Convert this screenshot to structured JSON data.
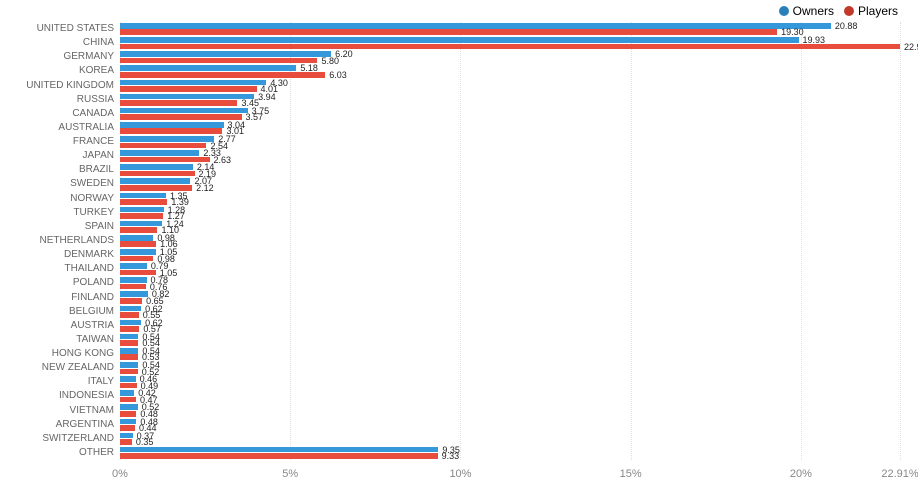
{
  "chart": {
    "type": "bar",
    "orientation": "horizontal",
    "background_color": "#ffffff",
    "grid_color": "rgba(0,0,0,0.12)",
    "axis_label_color": "#888888",
    "category_label_color": "#666666",
    "value_label_color": "#222222",
    "category_label_fontsize": 10,
    "value_label_fontsize": 9,
    "axis_label_fontsize": 11,
    "legend_fontsize": 12,
    "x_ticks": [
      {
        "value": 0,
        "label": "0%"
      },
      {
        "value": 5,
        "label": "5%"
      },
      {
        "value": 10,
        "label": "10%"
      },
      {
        "value": 15,
        "label": "15%"
      },
      {
        "value": 20,
        "label": "20%"
      },
      {
        "value": 22.91,
        "label": "22.91%"
      }
    ],
    "x_max": 22.91,
    "series": [
      {
        "key": "owners",
        "label": "Owners",
        "color": "#3498db",
        "swatch_color": "#2980b9"
      },
      {
        "key": "players",
        "label": "Players",
        "color": "#e74c3c",
        "swatch_color": "#c0392b"
      }
    ],
    "categories": [
      {
        "label": "UNITED STATES",
        "owners": 20.88,
        "players": 19.3
      },
      {
        "label": "CHINA",
        "owners": 19.93,
        "players": 22.91
      },
      {
        "label": "GERMANY",
        "owners": 6.2,
        "players": 5.8
      },
      {
        "label": "KOREA",
        "owners": 5.18,
        "players": 6.03
      },
      {
        "label": "UNITED KINGDOM",
        "owners": 4.3,
        "players": 4.01
      },
      {
        "label": "RUSSIA",
        "owners": 3.94,
        "players": 3.45
      },
      {
        "label": "CANADA",
        "owners": 3.75,
        "players": 3.57
      },
      {
        "label": "AUSTRALIA",
        "owners": 3.04,
        "players": 3.01
      },
      {
        "label": "FRANCE",
        "owners": 2.77,
        "players": 2.54
      },
      {
        "label": "JAPAN",
        "owners": 2.33,
        "players": 2.63
      },
      {
        "label": "BRAZIL",
        "owners": 2.14,
        "players": 2.19
      },
      {
        "label": "SWEDEN",
        "owners": 2.07,
        "players": 2.12
      },
      {
        "label": "NORWAY",
        "owners": 1.35,
        "players": 1.39
      },
      {
        "label": "TURKEY",
        "owners": 1.28,
        "players": 1.27
      },
      {
        "label": "SPAIN",
        "owners": 1.24,
        "players": 1.1
      },
      {
        "label": "NETHERLANDS",
        "owners": 0.98,
        "players": 1.06
      },
      {
        "label": "DENMARK",
        "owners": 1.05,
        "players": 0.98
      },
      {
        "label": "THAILAND",
        "owners": 0.79,
        "players": 1.05
      },
      {
        "label": "POLAND",
        "owners": 0.78,
        "players": 0.76
      },
      {
        "label": "FINLAND",
        "owners": 0.82,
        "players": 0.65
      },
      {
        "label": "BELGIUM",
        "owners": 0.62,
        "players": 0.55
      },
      {
        "label": "AUSTRIA",
        "owners": 0.62,
        "players": 0.57
      },
      {
        "label": "TAIWAN",
        "owners": 0.54,
        "players": 0.54
      },
      {
        "label": "HONG KONG",
        "owners": 0.54,
        "players": 0.53
      },
      {
        "label": "NEW ZEALAND",
        "owners": 0.54,
        "players": 0.52
      },
      {
        "label": "ITALY",
        "owners": 0.46,
        "players": 0.49
      },
      {
        "label": "INDONESIA",
        "owners": 0.42,
        "players": 0.47
      },
      {
        "label": "VIETNAM",
        "owners": 0.52,
        "players": 0.48
      },
      {
        "label": "ARGENTINA",
        "owners": 0.48,
        "players": 0.44
      },
      {
        "label": "SWITZERLAND",
        "owners": 0.37,
        "players": 0.35
      },
      {
        "label": "OTHER",
        "owners": 9.35,
        "players": 9.33
      }
    ]
  }
}
